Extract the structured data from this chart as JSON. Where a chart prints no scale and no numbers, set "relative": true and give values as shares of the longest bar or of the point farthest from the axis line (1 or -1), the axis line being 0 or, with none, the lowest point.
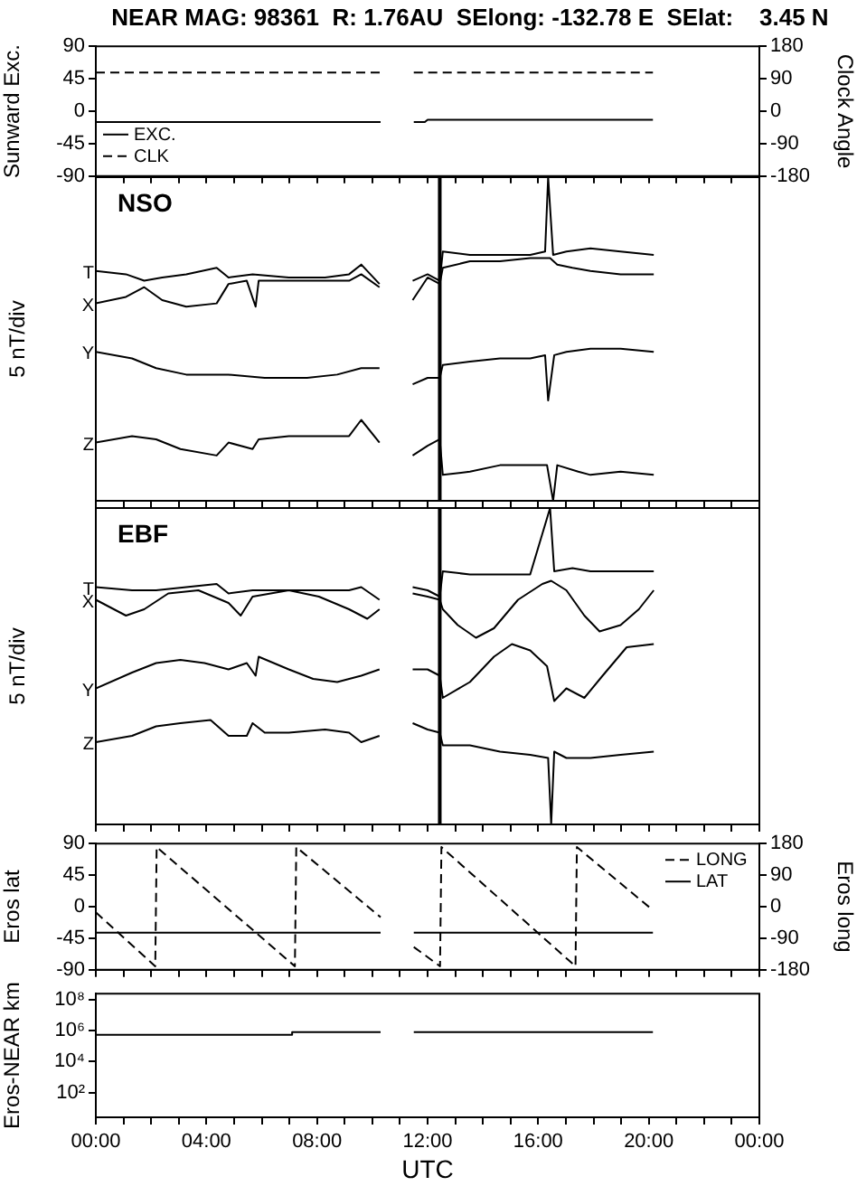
{
  "chart_data": [
    {
      "type": "line",
      "title": "NEAR MAG: 98361  R: 1.76AU  SElong: -132.78 E  SElat:    3.45 N",
      "ylabel": "Sunward Exc.",
      "y2label": "Clock Angle",
      "tick_labels": "y",
      "xlim": [
        0,
        24
      ],
      "legend": "bottom left",
      "xticks": [
        0,
        1,
        2,
        3,
        4,
        5,
        6,
        7,
        8,
        9,
        10,
        11,
        12,
        13,
        14,
        15,
        16,
        17,
        18,
        19,
        20,
        21,
        22,
        23,
        24
      ],
      "ylim": [
        -90,
        90
      ],
      "yticks": [
        -90,
        -45,
        0,
        45,
        90
      ],
      "y2lim": [
        -180,
        180
      ],
      "y2ticks": [
        -180,
        -90,
        0,
        90,
        180
      ],
      "series": [
        {
          "name": "CLK",
          "color": "#000000",
          "axis": "y2",
          "line_style": "dashed",
          "x": [
            0,
            10.3,
            10.9,
            11.5,
            20.15
          ],
          "values": [
            107,
            107,
            null,
            107,
            107
          ]
        },
        {
          "name": "EXC.",
          "color": "#000000",
          "x": [
            0,
            10.3,
            10.9,
            11.5,
            11.9,
            12.0,
            20.15
          ],
          "values": [
            -15,
            -15,
            null,
            -15,
            -15,
            -12,
            -12
          ]
        }
      ]
    },
    {
      "type": "line",
      "ylabel": "5 nT/div",
      "relative": true,
      "tick_labels": false,
      "xlim": [
        0,
        24
      ],
      "annotations": [
        "NSO"
      ],
      "xticks": [
        0,
        1,
        2,
        3,
        4,
        5,
        6,
        7,
        8,
        9,
        10,
        11,
        12,
        13,
        14,
        15,
        16,
        17,
        18,
        19,
        20,
        21,
        22,
        23,
        24
      ],
      "ref_lines": [
        {
          "axis": "x",
          "value": 12.44
        }
      ],
      "series": [
        {
          "name": "T",
          "color": "#000000",
          "x": [
            0,
            1.09,
            1.75,
            2.4,
            3.27,
            4.37,
            4.8,
            5.67,
            6.98,
            8.29,
            9.16,
            9.6,
            10.26,
            10.9,
            11.46,
            12.0,
            12.44,
            12.55,
            13.53,
            14.62,
            15.71,
            16.25,
            16.36,
            16.54,
            17.02,
            17.89,
            18.98,
            20.18
          ],
          "values": [
            0.71,
            0.7,
            0.68,
            0.69,
            0.7,
            0.72,
            0.69,
            0.7,
            0.69,
            0.69,
            0.7,
            0.73,
            0.67,
            null,
            0.68,
            0.7,
            0.68,
            0.77,
            0.76,
            0.76,
            0.76,
            0.77,
            1.0,
            0.76,
            0.77,
            0.78,
            0.77,
            0.76
          ]
        },
        {
          "name": "X",
          "color": "#000000",
          "x": [
            0,
            1.09,
            1.75,
            2.4,
            3.27,
            4.37,
            4.8,
            5.46,
            5.78,
            5.89,
            6.98,
            8.29,
            9.16,
            9.6,
            10.26,
            10.9,
            11.46,
            12.0,
            12.44,
            12.55,
            13.53,
            14.62,
            15.71,
            16.25,
            16.43,
            16.69,
            17.24,
            17.89,
            18.98,
            19.64,
            20.18
          ],
          "values": [
            0.61,
            0.63,
            0.66,
            0.62,
            0.6,
            0.61,
            0.67,
            0.68,
            0.6,
            0.68,
            0.68,
            0.68,
            0.68,
            0.7,
            0.66,
            null,
            0.62,
            0.69,
            0.67,
            0.72,
            0.74,
            0.74,
            0.75,
            0.75,
            0.75,
            0.73,
            0.72,
            0.71,
            0.7,
            0.7,
            0.7
          ]
        },
        {
          "name": "Y",
          "color": "#000000",
          "x": [
            0,
            1.31,
            2.18,
            3.27,
            4.8,
            6.11,
            7.64,
            8.73,
            9.6,
            10.26,
            10.9,
            11.46,
            12.0,
            12.44,
            12.55,
            13.53,
            14.62,
            15.71,
            16.25,
            16.36,
            16.58,
            17.02,
            17.89,
            18.98,
            20.18
          ],
          "values": [
            0.46,
            0.44,
            0.41,
            0.39,
            0.39,
            0.38,
            0.38,
            0.39,
            0.41,
            0.41,
            null,
            0.36,
            0.38,
            0.38,
            0.42,
            0.43,
            0.44,
            0.44,
            0.45,
            0.31,
            0.45,
            0.46,
            0.47,
            0.47,
            0.46
          ]
        },
        {
          "name": "Z",
          "color": "#000000",
          "x": [
            0,
            1.31,
            2.18,
            3.06,
            4.37,
            4.8,
            5.67,
            5.89,
            6.98,
            8.29,
            9.16,
            9.6,
            10.26,
            10.9,
            11.46,
            12.0,
            12.44,
            12.55,
            13.53,
            14.62,
            15.71,
            16.32,
            16.54,
            16.69,
            17.45,
            17.89,
            18.98,
            20.18
          ],
          "values": [
            0.18,
            0.2,
            0.19,
            0.16,
            0.14,
            0.18,
            0.16,
            0.19,
            0.2,
            0.2,
            0.2,
            0.25,
            0.18,
            null,
            0.14,
            0.17,
            0.19,
            0.08,
            0.09,
            0.11,
            0.11,
            0.11,
            0.0,
            0.11,
            0.09,
            0.08,
            0.09,
            0.08
          ]
        }
      ]
    },
    {
      "type": "line",
      "ylabel": "5 nT/div",
      "relative": true,
      "tick_labels": false,
      "xlim": [
        0,
        24
      ],
      "annotations": [
        "EBF"
      ],
      "xticks": [
        0,
        1,
        2,
        3,
        4,
        5,
        6,
        7,
        8,
        9,
        10,
        11,
        12,
        13,
        14,
        15,
        16,
        17,
        18,
        19,
        20,
        21,
        22,
        23,
        24
      ],
      "ref_lines": [
        {
          "axis": "x",
          "value": 12.44
        }
      ],
      "series": [
        {
          "name": "T",
          "color": "#000000",
          "x": [
            0,
            1.31,
            2.18,
            3.27,
            4.37,
            4.8,
            5.67,
            6.98,
            8.29,
            9.16,
            9.6,
            10.26,
            10.9,
            11.46,
            12.0,
            12.44,
            12.55,
            13.53,
            14.62,
            15.71,
            16.43,
            16.58,
            17.24,
            17.89,
            18.98,
            20.18
          ],
          "values": [
            0.75,
            0.74,
            0.74,
            0.75,
            0.76,
            0.73,
            0.74,
            0.74,
            0.74,
            0.74,
            0.75,
            0.71,
            null,
            0.75,
            0.74,
            0.72,
            0.8,
            0.79,
            0.79,
            0.79,
            1.0,
            0.8,
            0.81,
            0.8,
            0.8,
            0.8
          ]
        },
        {
          "name": "X",
          "color": "#000000",
          "x": [
            0,
            1.09,
            1.75,
            2.62,
            3.71,
            4.8,
            5.24,
            5.67,
            6.98,
            8.07,
            9.16,
            9.82,
            10.26,
            10.9,
            11.46,
            12.0,
            12.44,
            12.55,
            13.09,
            13.75,
            14.4,
            15.27,
            16.15,
            16.47,
            17.02,
            17.67,
            18.22,
            18.98,
            19.64,
            20.18
          ],
          "values": [
            0.71,
            0.66,
            0.68,
            0.73,
            0.74,
            0.7,
            0.66,
            0.72,
            0.74,
            0.72,
            0.68,
            0.65,
            0.68,
            null,
            0.73,
            0.72,
            0.71,
            0.68,
            0.63,
            0.59,
            0.62,
            0.71,
            0.76,
            0.77,
            0.74,
            0.66,
            0.61,
            0.63,
            0.68,
            0.74
          ]
        },
        {
          "name": "Y",
          "color": "#000000",
          "x": [
            0,
            1.31,
            2.18,
            3.06,
            3.93,
            4.8,
            5.46,
            5.78,
            5.89,
            6.98,
            7.86,
            8.73,
            9.6,
            10.26,
            10.9,
            11.46,
            12.0,
            12.44,
            12.55,
            13.53,
            14.4,
            15.05,
            15.71,
            16.32,
            16.58,
            17.02,
            17.67,
            18.33,
            19.2,
            20.18
          ],
          "values": [
            0.43,
            0.48,
            0.51,
            0.52,
            0.51,
            0.49,
            0.51,
            0.47,
            0.53,
            0.49,
            0.46,
            0.45,
            0.47,
            0.49,
            null,
            0.49,
            0.49,
            0.47,
            0.4,
            0.45,
            0.53,
            0.57,
            0.55,
            0.5,
            0.39,
            0.43,
            0.4,
            0.47,
            0.56,
            0.57
          ]
        },
        {
          "name": "Z",
          "color": "#000000",
          "x": [
            0,
            1.31,
            2.18,
            3.06,
            4.15,
            4.8,
            5.46,
            5.67,
            6.11,
            6.98,
            8.29,
            9.16,
            9.6,
            10.26,
            10.9,
            11.46,
            12.0,
            12.44,
            12.55,
            13.53,
            14.62,
            15.71,
            16.36,
            16.47,
            16.58,
            17.02,
            17.89,
            18.98,
            20.18
          ],
          "values": [
            0.26,
            0.28,
            0.31,
            0.32,
            0.33,
            0.28,
            0.28,
            0.32,
            0.29,
            0.29,
            0.3,
            0.29,
            0.26,
            0.28,
            null,
            0.32,
            0.3,
            0.29,
            0.25,
            0.25,
            0.23,
            0.22,
            0.21,
            0.0,
            0.23,
            0.21,
            0.21,
            0.22,
            0.23
          ]
        }
      ]
    },
    {
      "type": "line",
      "ylabel": "Eros lat",
      "y2label": "Eros long",
      "tick_labels": "y",
      "xlim": [
        0,
        24
      ],
      "legend": "top right",
      "xticks": [
        0,
        1,
        2,
        3,
        4,
        5,
        6,
        7,
        8,
        9,
        10,
        11,
        12,
        13,
        14,
        15,
        16,
        17,
        18,
        19,
        20,
        21,
        22,
        23,
        24
      ],
      "ylim": [
        -90,
        90
      ],
      "yticks": [
        -90,
        -45,
        0,
        45,
        90
      ],
      "y2lim": [
        -180,
        180
      ],
      "y2ticks": [
        -180,
        -90,
        0,
        90,
        180
      ],
      "series": [
        {
          "name": "LONG",
          "color": "#000000",
          "axis": "y2",
          "line_style": "dashed",
          "x": [
            0,
            2.15,
            2.2,
            7.2,
            7.25,
            10.3,
            10.9,
            11.5,
            12.45,
            12.5,
            17.35,
            17.4,
            20.15
          ],
          "values": [
            -16,
            -170,
            170,
            -170,
            170,
            -30,
            null,
            -115,
            -170,
            170,
            -170,
            170,
            -10
          ]
        },
        {
          "name": "LAT",
          "color": "#000000",
          "x": [
            0,
            10.3,
            10.9,
            11.5,
            20.15
          ],
          "values": [
            -37,
            -37,
            null,
            -37,
            -37
          ]
        }
      ]
    },
    {
      "type": "line",
      "xlabel": "UTC",
      "ylabel": "Eros-NEAR km",
      "log": "y",
      "xlim": [
        0,
        24
      ],
      "xticks": [
        {
          "value": 0,
          "label": "00:00"
        },
        {
          "value": 1,
          "label": null
        },
        {
          "value": 2,
          "label": null
        },
        {
          "value": 3,
          "label": null
        },
        {
          "value": 4,
          "label": "04:00"
        },
        {
          "value": 5,
          "label": null
        },
        {
          "value": 6,
          "label": null
        },
        {
          "value": 7,
          "label": null
        },
        {
          "value": 8,
          "label": "08:00"
        },
        {
          "value": 9,
          "label": null
        },
        {
          "value": 10,
          "label": null
        },
        {
          "value": 11,
          "label": null
        },
        {
          "value": 12,
          "label": "12:00"
        },
        {
          "value": 13,
          "label": null
        },
        {
          "value": 14,
          "label": null
        },
        {
          "value": 15,
          "label": null
        },
        {
          "value": 16,
          "label": "16:00"
        },
        {
          "value": 17,
          "label": null
        },
        {
          "value": 18,
          "label": null
        },
        {
          "value": 19,
          "label": null
        },
        {
          "value": 20,
          "label": "20:00"
        },
        {
          "value": 21,
          "label": null
        },
        {
          "value": 22,
          "label": null
        },
        {
          "value": 23,
          "label": null
        },
        {
          "value": 24,
          "label": "00:00"
        }
      ],
      "ylim": [
        2.5,
        250000000
      ],
      "yticks": [
        {
          "value": 100,
          "label": "10²"
        },
        {
          "value": 10000,
          "label": "10⁴"
        },
        {
          "value": 1000000,
          "label": "10⁶"
        },
        {
          "value": 100000000,
          "label": "10⁸"
        }
      ],
      "series": [
        {
          "color": "#000000",
          "x": [
            0,
            7.07,
            7.1,
            10.3,
            10.9,
            11.5,
            20.15
          ],
          "values": [
            540000,
            540000,
            800000,
            800000,
            null,
            800000,
            800000
          ]
        }
      ]
    }
  ]
}
